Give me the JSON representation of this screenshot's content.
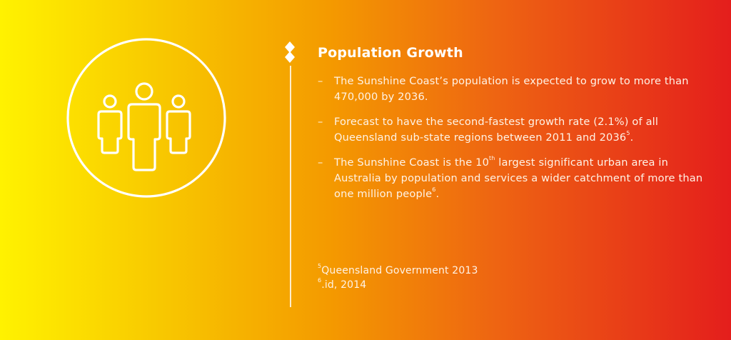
{
  "icon": {
    "name": "people-group-icon",
    "stroke_color": "#ffffff"
  },
  "divider": {
    "name": "timeline-divider-line"
  },
  "section": {
    "title": "Population Growth",
    "bullets": [
      {
        "dash": "–",
        "text": "The Sunshine Coast’s population is expected to grow to more than 470,000 by 2036."
      },
      {
        "dash": "–",
        "text_before": "Forecast to have the second-fastest growth rate (2.1%) of all Queensland sub-state regions between 2011 and 2036",
        "sup": "5",
        "text_after": "."
      },
      {
        "dash": "–",
        "text_before": "The Sunshine Coast is the 10",
        "sup": "th",
        "text_middle": " largest significant urban area in Australia by population and services a wider catchment of more than one million people",
        "sup2": "6",
        "text_after": "."
      }
    ]
  },
  "footnotes": [
    {
      "marker": "5",
      "text": "Queensland Government 2013"
    },
    {
      "marker": "6",
      "text": ".id, 2014"
    }
  ],
  "colors": {
    "gradient_left": "#fff200",
    "gradient_mid": "#f49a00",
    "gradient_right": "#e41e1c",
    "text": "#ffffff"
  }
}
